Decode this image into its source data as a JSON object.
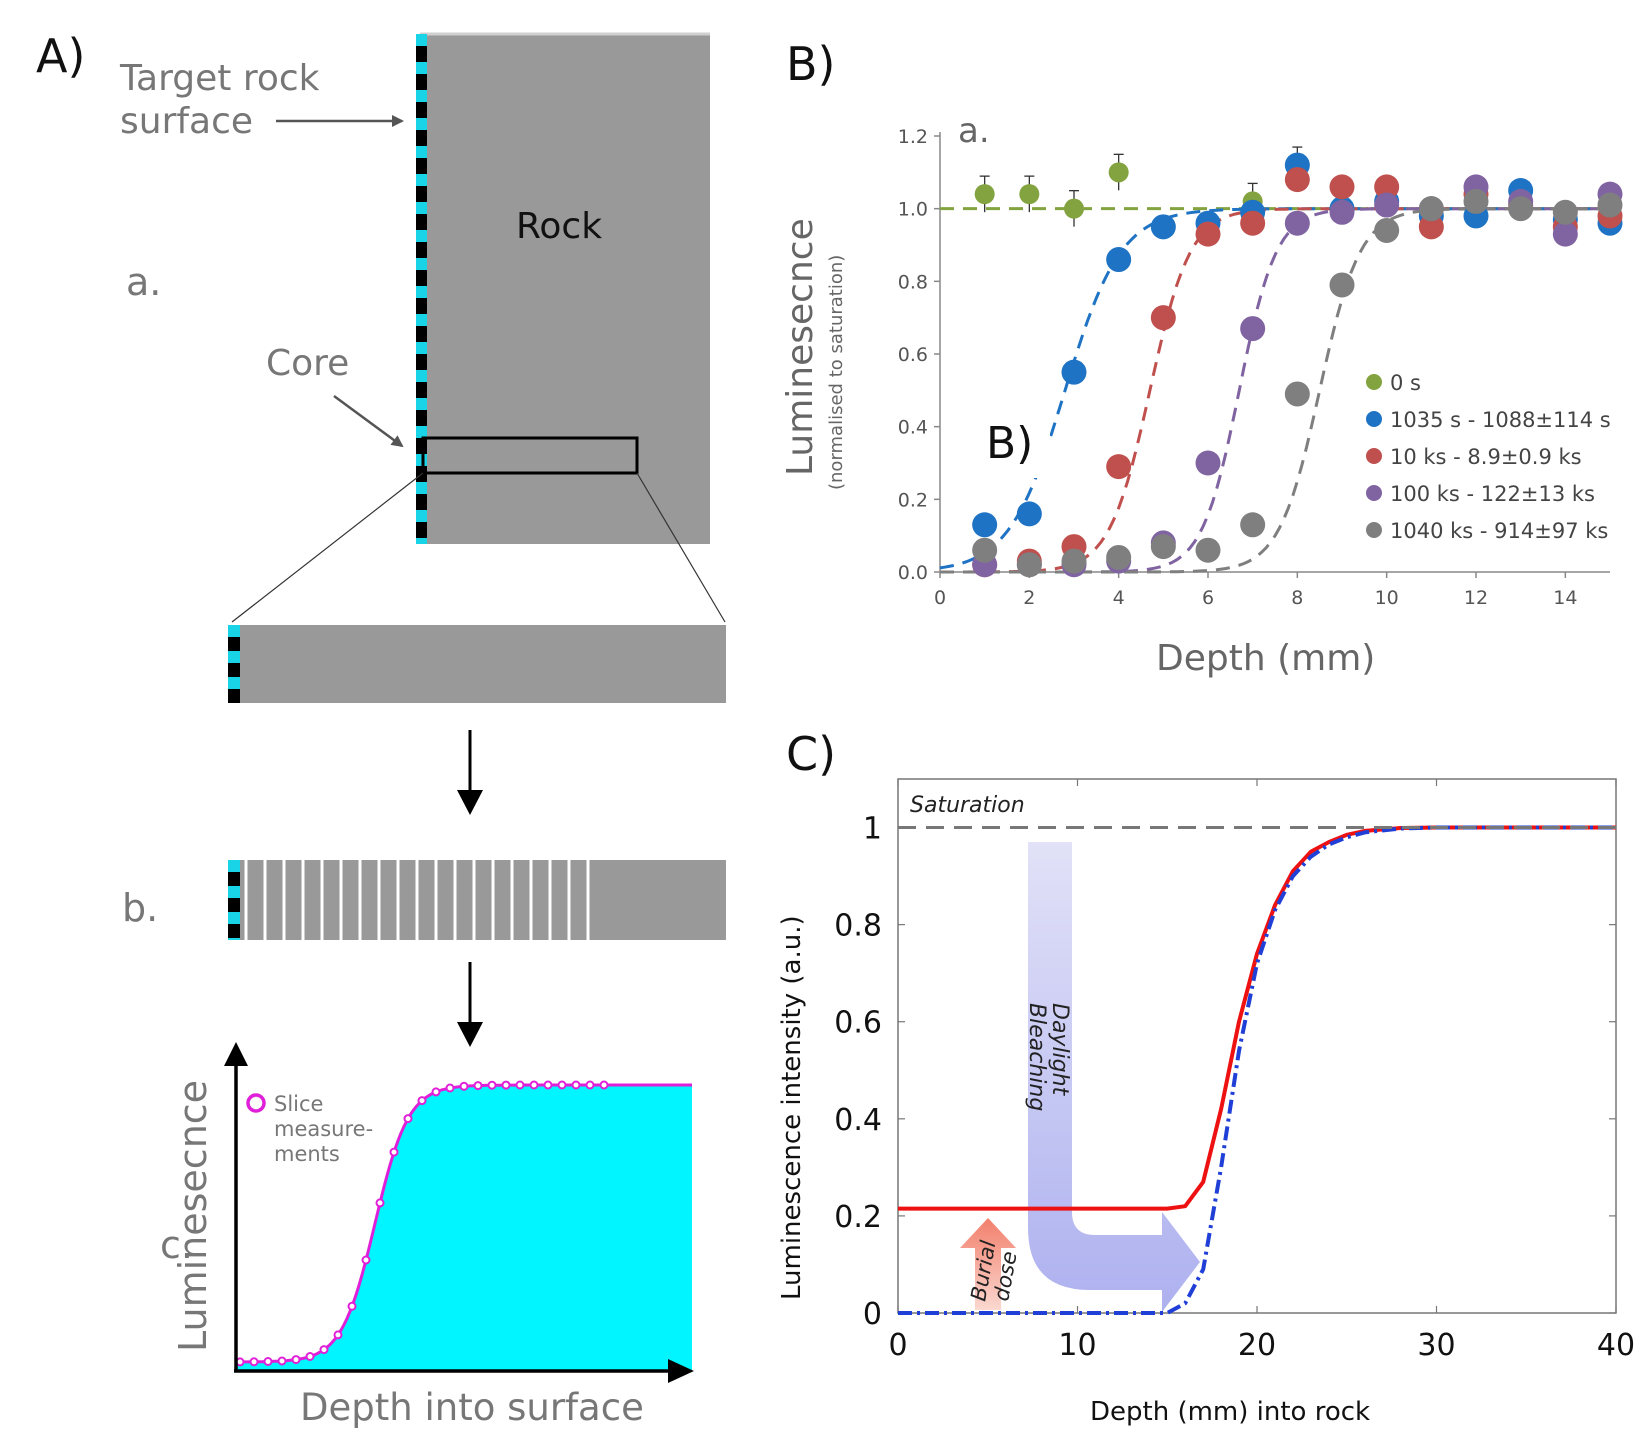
{
  "panelA": {
    "letter": "A)",
    "target_label_line1": "Target rock",
    "target_label_line2": "surface",
    "rock_label": "Rock",
    "step_a": "a.",
    "core_label": "Core",
    "step_b": "b.",
    "step_c": "c.",
    "legend_line1": "Slice",
    "legend_line2": "measure-",
    "legend_line3": "ments",
    "ylabel": "Luminesecnce",
    "xlabel": "Depth into surface",
    "colors": {
      "rock": "#999999",
      "surface_stripe": "#19d4e6",
      "fill": "#00f5ff",
      "curve": "#e020d8"
    }
  },
  "panelB": {
    "letter": "B)",
    "inner_label": "a.",
    "overlay_label": "B)"
  },
  "panelC": {
    "letter": "C)",
    "saturation_label": "Saturation",
    "daylight_line1": "Daylight",
    "daylight_line2": "Bleaching",
    "burial_line1": "Burial",
    "burial_line2": "dose"
  },
  "chart_data": [
    {
      "type": "line",
      "title": "",
      "xlabel": "Depth into surface",
      "ylabel": "Luminesecnce",
      "series": [
        {
          "name": "Slice measure-ments",
          "color": "#e020d8"
        }
      ],
      "note_values": "schematic sigmoid: low plateau near surface, rising to saturation plateau at depth"
    },
    {
      "type": "scatter",
      "xlabel": "Depth (mm)",
      "ylabel": "Luminesecnce",
      "ylabel2": "(normalised to saturation)",
      "xlim": [
        0,
        15
      ],
      "ylim": [
        0,
        1.2
      ],
      "xticks": [
        "0",
        "2",
        "4",
        "6",
        "8",
        "10",
        "12",
        "14"
      ],
      "yticks": [
        "0.0",
        "0.2",
        "0.4",
        "0.6",
        "0.8",
        "1.0",
        "1.2"
      ],
      "legend_position": "bottom-right",
      "series": [
        {
          "name": "0 s",
          "color": "#82a33f",
          "x": [
            1,
            2,
            3,
            4,
            7,
            8
          ],
          "y": [
            1.04,
            1.04,
            1.0,
            1.1,
            1.02,
            1.12
          ],
          "fit": {
            "type": "flat",
            "y": 1.0
          }
        },
        {
          "name": "1035 s - 1088±114 s",
          "color": "#1f73c4",
          "x": [
            1,
            2,
            3,
            4,
            5,
            6,
            7,
            8,
            9,
            10,
            11,
            12,
            13,
            14,
            15
          ],
          "y": [
            0.13,
            0.16,
            0.55,
            0.86,
            0.95,
            0.96,
            0.99,
            1.12,
            1.0,
            1.02,
            0.98,
            0.98,
            1.05,
            0.97,
            0.96
          ],
          "fit": {
            "type": "sigmoid",
            "x50": 2.8,
            "k": 1.6
          }
        },
        {
          "name": "10 ks - 8.9±0.9 ks",
          "color": "#c0504d",
          "x": [
            1,
            2,
            3,
            4,
            5,
            6,
            7,
            8,
            9,
            10,
            11,
            12,
            13,
            14,
            15
          ],
          "y": [
            0.02,
            0.03,
            0.07,
            0.29,
            0.7,
            0.93,
            0.96,
            1.08,
            1.06,
            1.06,
            0.95,
            1.04,
            1.01,
            0.95,
            0.98
          ],
          "fit": {
            "type": "sigmoid",
            "x50": 4.7,
            "k": 2.2
          }
        },
        {
          "name": "100 ks - 122±13 ks",
          "color": "#8064a2",
          "x": [
            1,
            2,
            3,
            4,
            5,
            6,
            7,
            8,
            9,
            10,
            11,
            12,
            13,
            14,
            15
          ],
          "y": [
            0.02,
            0.02,
            0.02,
            0.03,
            0.08,
            0.3,
            0.67,
            0.96,
            0.99,
            1.01,
            1.0,
            1.06,
            1.02,
            0.93,
            1.04
          ],
          "fit": {
            "type": "sigmoid",
            "x50": 6.7,
            "k": 2.4
          }
        },
        {
          "name": "1040 ks - 914±97 ks",
          "color": "#7f7f7f",
          "x": [
            1,
            2,
            3,
            4,
            5,
            6,
            7,
            8,
            9,
            10,
            11,
            12,
            13,
            14,
            15
          ],
          "y": [
            0.06,
            0.02,
            0.03,
            0.04,
            0.07,
            0.06,
            0.13,
            0.49,
            0.79,
            0.94,
            1.0,
            1.02,
            1.0,
            0.99,
            1.01
          ],
          "fit": {
            "type": "sigmoid",
            "x50": 8.5,
            "k": 2.2
          }
        }
      ]
    },
    {
      "type": "line",
      "xlabel": "Depth (mm) into rock",
      "ylabel": "Luminescence intensity (a.u.)",
      "xlim": [
        0,
        40
      ],
      "ylim": [
        0,
        1.1
      ],
      "xticks": [
        "0",
        "10",
        "20",
        "30",
        "40"
      ],
      "yticks": [
        "0",
        "0.2",
        "0.4",
        "0.6",
        "0.8",
        "1"
      ],
      "series": [
        {
          "color": "#ee1111",
          "style": "solid",
          "x": [
            0,
            15,
            16,
            17,
            18,
            19,
            20,
            21,
            22,
            23,
            24,
            25,
            26,
            28,
            30,
            40
          ],
          "y": [
            0.215,
            0.215,
            0.22,
            0.27,
            0.42,
            0.6,
            0.74,
            0.84,
            0.91,
            0.95,
            0.97,
            0.985,
            0.993,
            0.999,
            1.0,
            1.0
          ]
        },
        {
          "color": "#1f3fd6",
          "style": "dash-dot",
          "x": [
            0,
            15,
            16,
            17,
            18,
            19,
            20,
            21,
            22,
            23,
            24,
            25,
            26,
            28,
            30,
            40
          ],
          "y": [
            0.0,
            0.0,
            0.02,
            0.09,
            0.3,
            0.54,
            0.72,
            0.83,
            0.9,
            0.94,
            0.965,
            0.98,
            0.99,
            0.998,
            1.0,
            1.0
          ]
        },
        {
          "color": "#777777",
          "style": "dashed",
          "label": "Saturation",
          "x": [
            0,
            40
          ],
          "y": [
            1.0,
            1.0
          ]
        }
      ]
    }
  ]
}
